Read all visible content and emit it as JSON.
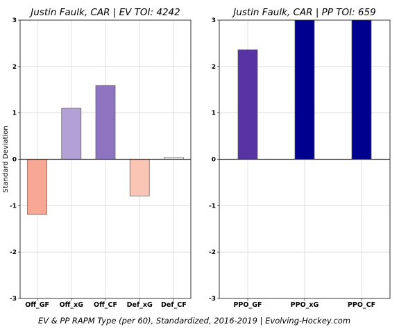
{
  "footer": "EV & PP RAPM Type (per 60), Standardized, 2016-2019    |    Evolving-Hockey.com",
  "chart_data": [
    {
      "type": "bar",
      "title": "Justin Faulk, CAR  |  EV TOI: 4242",
      "xlabel": "",
      "ylabel": "Standard Deviation",
      "ylim": [
        -3,
        3
      ],
      "yticks": [
        -3,
        -2,
        -1,
        0,
        1,
        2,
        3
      ],
      "grid": true,
      "categories": [
        "Off_GF",
        "Off_xG",
        "Off_CF",
        "Def_xG",
        "Def_CF"
      ],
      "values": [
        -1.19,
        1.1,
        1.59,
        -0.79,
        0.04
      ],
      "colors": [
        "#f8a795",
        "#b3a0d6",
        "#8f74c2",
        "#fbc5b5",
        "#f4f1f7"
      ]
    },
    {
      "type": "bar",
      "title": "Justin Faulk, CAR  |  PP TOI: 659",
      "xlabel": "",
      "ylabel": "",
      "ylim": [
        -3,
        3
      ],
      "yticks": [
        -3,
        -2,
        -1,
        0,
        1,
        2,
        3
      ],
      "grid": true,
      "categories": [
        "PPO_GF",
        "PPO_xG",
        "PPO_CF"
      ],
      "values": [
        2.36,
        3.0,
        3.0
      ],
      "colors": [
        "#5733a3",
        "#00008e",
        "#00008e"
      ]
    }
  ]
}
